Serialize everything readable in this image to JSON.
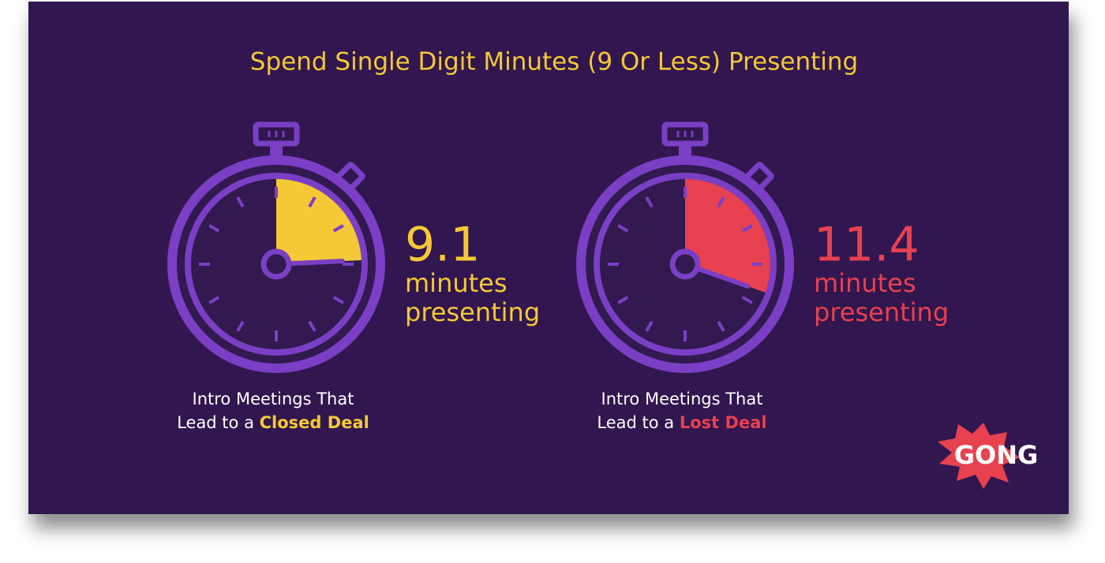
{
  "title": "Spend Single Digit Minutes (9 Or Less) Presenting",
  "stopwatches": [
    {
      "value": 9.1,
      "unit_line1": "minutes",
      "unit_line2": "presenting",
      "caption_line1": "Intro Meetings That",
      "caption_line2": "Lead to a",
      "caption_highlight": "Closed Deal",
      "color": "#f4c935"
    },
    {
      "value": 11.4,
      "unit_line1": "minutes",
      "unit_line2": "presenting",
      "caption_line1": "Intro Meetings That",
      "caption_line2": "Lead to a",
      "caption_highlight": "Lost Deal",
      "color": "#e8414f"
    }
  ],
  "logo": "GONG"
}
